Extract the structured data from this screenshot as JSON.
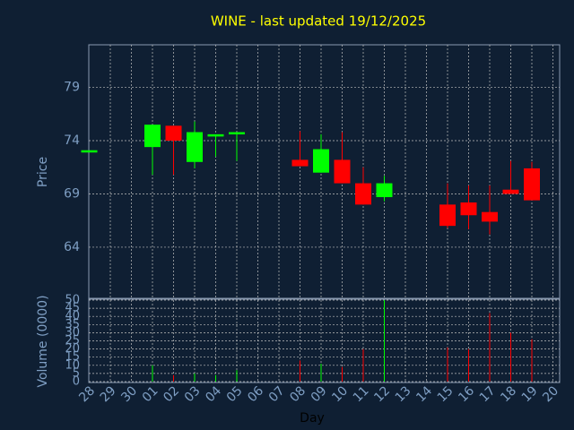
{
  "chart_data": [
    {
      "type": "candlestick",
      "title": "WINE - last updated 19/12/2025",
      "y_label": "Price",
      "categories": [
        "28",
        "29",
        "30",
        "01",
        "02",
        "03",
        "04",
        "05",
        "06",
        "07",
        "08",
        "09",
        "10",
        "11",
        "12",
        "13",
        "14",
        "15",
        "16",
        "17",
        "18",
        "19",
        "20"
      ],
      "open": [
        73.1,
        null,
        null,
        73.4,
        75.4,
        72.0,
        74.5,
        74.6,
        null,
        null,
        72.2,
        71.0,
        72.2,
        70.0,
        68.7,
        null,
        null,
        68.0,
        68.2,
        67.3,
        69.4,
        71.4,
        null
      ],
      "high": [
        73.1,
        null,
        null,
        75.5,
        75.4,
        75.8,
        74.6,
        74.8,
        null,
        null,
        74.9,
        74.6,
        74.8,
        71.5,
        70.7,
        null,
        null,
        70.0,
        69.8,
        69.8,
        72.1,
        72.0,
        null
      ],
      "low": [
        73.1,
        null,
        null,
        70.8,
        70.8,
        71.4,
        72.5,
        72.1,
        null,
        null,
        71.6,
        71.0,
        70.0,
        68.0,
        68.3,
        null,
        null,
        65.8,
        65.7,
        65.2,
        69.0,
        68.4,
        null
      ],
      "close": [
        73.1,
        null,
        null,
        75.5,
        74.0,
        74.8,
        74.6,
        74.8,
        null,
        null,
        71.6,
        73.2,
        70.0,
        68.0,
        70.0,
        null,
        null,
        66.0,
        67.0,
        66.4,
        69.0,
        68.4,
        null
      ],
      "up_color": "#00ff00",
      "down_color": "#ff0000",
      "ylim": [
        59.2,
        83
      ],
      "yticks": [
        64,
        69,
        74,
        79
      ],
      "grid": true
    },
    {
      "type": "bar",
      "y_label": "Volume (0000)",
      "x_label": "Day",
      "categories": [
        "28",
        "29",
        "30",
        "01",
        "02",
        "03",
        "04",
        "05",
        "06",
        "07",
        "08",
        "09",
        "10",
        "11",
        "12",
        "13",
        "14",
        "15",
        "16",
        "17",
        "18",
        "19",
        "20"
      ],
      "values": [
        0,
        null,
        null,
        10,
        4,
        5,
        4,
        7,
        null,
        null,
        13,
        11,
        9,
        20,
        50,
        null,
        null,
        21,
        20,
        42,
        30,
        26,
        null
      ],
      "ylim": [
        0,
        50
      ],
      "yticks": [
        0,
        5,
        10,
        15,
        20,
        25,
        30,
        35,
        40,
        45,
        50
      ],
      "grid": true
    }
  ]
}
